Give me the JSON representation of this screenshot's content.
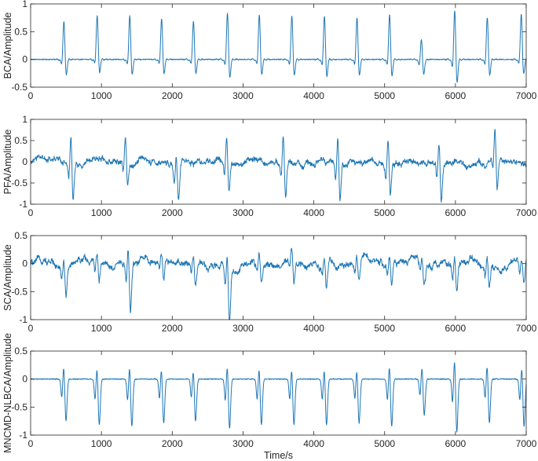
{
  "chart_data": [
    {
      "type": "line",
      "ylabel": "BCA/Amplitude",
      "xlim": [
        0,
        7000
      ],
      "ylim": [
        -0.5,
        1
      ],
      "xticks": [
        0,
        1000,
        2000,
        3000,
        4000,
        5000,
        6000,
        7000
      ],
      "xtick_labels": [
        "0",
        "1000",
        "2000",
        "3000",
        "4000",
        "5000",
        "6000",
        "7000"
      ],
      "yticks": [
        -0.5,
        0,
        0.5,
        1
      ],
      "ytick_labels": [
        "-0.5",
        "0",
        "0.5",
        "1"
      ],
      "color": "#1f77b4",
      "noise": 0.008,
      "baseline": "flat",
      "spikes": [
        {
          "x": 470,
          "peak": 0.75,
          "trough": -0.32
        },
        {
          "x": 940,
          "peak": 0.85,
          "trough": -0.28
        },
        {
          "x": 1400,
          "peak": 0.85,
          "trough": -0.32
        },
        {
          "x": 1850,
          "peak": 0.8,
          "trough": -0.3
        },
        {
          "x": 2300,
          "peak": 0.75,
          "trough": -0.3
        },
        {
          "x": 2780,
          "peak": 0.92,
          "trough": -0.38
        },
        {
          "x": 3230,
          "peak": 0.87,
          "trough": -0.32
        },
        {
          "x": 3690,
          "peak": 0.86,
          "trough": -0.34
        },
        {
          "x": 4150,
          "peak": 0.86,
          "trough": -0.36
        },
        {
          "x": 4610,
          "peak": 0.82,
          "trough": -0.33
        },
        {
          "x": 5070,
          "peak": 0.88,
          "trough": -0.35
        },
        {
          "x": 5520,
          "peak": 0.42,
          "trough": -0.3
        },
        {
          "x": 5990,
          "peak": 0.98,
          "trough": -0.48
        },
        {
          "x": 6450,
          "peak": 0.82,
          "trough": -0.33
        },
        {
          "x": 6930,
          "peak": 0.88,
          "trough": -0.3
        }
      ]
    },
    {
      "type": "line",
      "ylabel": "PFA/Amplitude",
      "xlim": [
        0,
        7000
      ],
      "ylim": [
        -1,
        1
      ],
      "xticks": [
        0,
        1000,
        2000,
        3000,
        4000,
        5000,
        6000,
        7000
      ],
      "xtick_labels": [
        "0",
        "1000",
        "2000",
        "3000",
        "4000",
        "5000",
        "6000",
        "7000"
      ],
      "yticks": [
        -1,
        -0.5,
        0,
        0.5,
        1
      ],
      "ytick_labels": [
        "-1",
        "-0.5",
        "0",
        "0.5",
        "1"
      ],
      "color": "#1f77b4",
      "noise": 0.04,
      "baseline": "wavy",
      "spikes": [
        {
          "x": 570,
          "peak": 0.8,
          "trough": -0.88
        },
        {
          "x": 1340,
          "peak": 0.7,
          "trough": -0.55
        },
        {
          "x": 2060,
          "peak": 0.3,
          "trough": -0.88
        },
        {
          "x": 2770,
          "peak": 0.75,
          "trough": -0.7
        },
        {
          "x": 3570,
          "peak": 0.78,
          "trough": -0.9
        },
        {
          "x": 4340,
          "peak": 0.75,
          "trough": -1.0
        },
        {
          "x": 5050,
          "peak": 0.7,
          "trough": -0.8
        },
        {
          "x": 5770,
          "peak": 0.7,
          "trough": -0.85
        },
        {
          "x": 6560,
          "peak": 0.75,
          "trough": -0.88
        }
      ]
    },
    {
      "type": "line",
      "ylabel": "SCA/Amplitude",
      "xlim": [
        0,
        7000
      ],
      "ylim": [
        -1,
        0.5
      ],
      "xticks": [
        0,
        1000,
        2000,
        3000,
        4000,
        5000,
        6000,
        7000
      ],
      "xtick_labels": [
        "0",
        "1000",
        "2000",
        "3000",
        "4000",
        "5000",
        "6000",
        "7000"
      ],
      "yticks": [
        -1,
        -0.5,
        0,
        0.5
      ],
      "ytick_labels": [
        "-1",
        "-0.5",
        "0",
        "0.5"
      ],
      "color": "#1f77b4",
      "noise": 0.03,
      "baseline": "wavy",
      "spikes": [
        {
          "x": 470,
          "peak": 0.25,
          "trough": -0.45
        },
        {
          "x": 940,
          "peak": 0.25,
          "trough": -0.4
        },
        {
          "x": 1380,
          "peak": 0.37,
          "trough": -0.92
        },
        {
          "x": 1850,
          "peak": 0.2,
          "trough": -0.4
        },
        {
          "x": 2300,
          "peak": 0.18,
          "trough": -0.42
        },
        {
          "x": 2780,
          "peak": 0.25,
          "trough": -0.98
        },
        {
          "x": 3230,
          "peak": 0.18,
          "trough": -0.4
        },
        {
          "x": 3690,
          "peak": 0.2,
          "trough": -0.42
        },
        {
          "x": 4150,
          "peak": 0.18,
          "trough": -0.48
        },
        {
          "x": 4610,
          "peak": 0.18,
          "trough": -0.4
        },
        {
          "x": 5070,
          "peak": 0.2,
          "trough": -0.4
        },
        {
          "x": 5530,
          "peak": 0.2,
          "trough": -0.35
        },
        {
          "x": 5990,
          "peak": 0.25,
          "trough": -0.5
        },
        {
          "x": 6450,
          "peak": 0.22,
          "trough": -0.4
        },
        {
          "x": 6940,
          "peak": 0.15,
          "trough": -0.45
        }
      ]
    },
    {
      "type": "line",
      "ylabel": "MNCMD-NLBCA/Amplitude",
      "xlabel": "Time/s",
      "xlim": [
        0,
        7000
      ],
      "ylim": [
        -1,
        0.5
      ],
      "xticks": [
        0,
        1000,
        2000,
        3000,
        4000,
        5000,
        6000,
        7000
      ],
      "xtick_labels": [
        "0",
        "1000",
        "2000",
        "3000",
        "4000",
        "5000",
        "6000",
        "7000"
      ],
      "yticks": [
        -1,
        -0.5,
        0,
        0.5
      ],
      "ytick_labels": [
        "-1",
        "-0.5",
        "0",
        "0.5"
      ],
      "color": "#1f77b4",
      "noise": 0.008,
      "baseline": "flat",
      "spikes": [
        {
          "x": 470,
          "peak": 0.32,
          "trough": -0.78
        },
        {
          "x": 940,
          "peak": 0.3,
          "trough": -0.85
        },
        {
          "x": 1400,
          "peak": 0.33,
          "trough": -0.88
        },
        {
          "x": 1850,
          "peak": 0.28,
          "trough": -0.82
        },
        {
          "x": 2300,
          "peak": 0.25,
          "trough": -0.78
        },
        {
          "x": 2780,
          "peak": 0.35,
          "trough": -0.92
        },
        {
          "x": 3230,
          "peak": 0.3,
          "trough": -0.85
        },
        {
          "x": 3690,
          "peak": 0.28,
          "trough": -0.85
        },
        {
          "x": 4150,
          "peak": 0.28,
          "trough": -0.85
        },
        {
          "x": 4610,
          "peak": 0.26,
          "trough": -0.82
        },
        {
          "x": 5070,
          "peak": 0.35,
          "trough": -0.88
        },
        {
          "x": 5530,
          "peak": 0.3,
          "trough": -0.68
        },
        {
          "x": 5990,
          "peak": 0.48,
          "trough": -1.0
        },
        {
          "x": 6450,
          "peak": 0.35,
          "trough": -0.82
        },
        {
          "x": 6940,
          "peak": 0.32,
          "trough": -0.88
        }
      ]
    }
  ]
}
